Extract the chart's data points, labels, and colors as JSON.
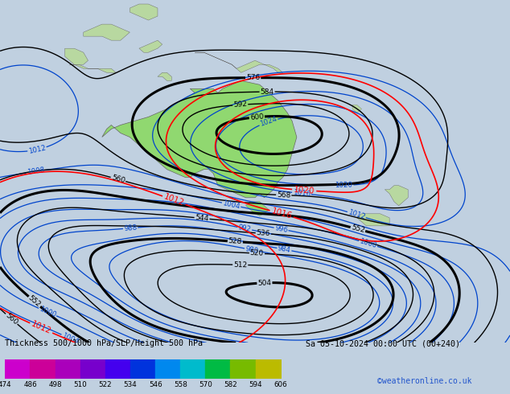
{
  "title_left": "Thickness 500/1000 hPa/SLP/Height 500 hPa",
  "title_right": "Sa 05-10-2024 00:00 UTC (00+240)",
  "credit": "©weatheronline.co.uk",
  "colorbar_values": [
    474,
    486,
    498,
    510,
    522,
    534,
    546,
    558,
    570,
    582,
    594,
    606
  ],
  "colorbar_colors": [
    "#cc00cc",
    "#cc0099",
    "#aa00bb",
    "#7700cc",
    "#4400ee",
    "#0033dd",
    "#0088ee",
    "#00bbcc",
    "#00bb44",
    "#77bb00",
    "#bbbb00",
    "#ffaa00",
    "#ff6600"
  ],
  "bg_color": "#c0d0e0",
  "sea_color": "#b8ccd8",
  "aus_color": "#90d870",
  "land_color": "#b8d8a0",
  "fig_width": 6.34,
  "fig_height": 4.9,
  "dpi": 100,
  "xlim": [
    90,
    200
  ],
  "ylim": [
    -75,
    10
  ]
}
